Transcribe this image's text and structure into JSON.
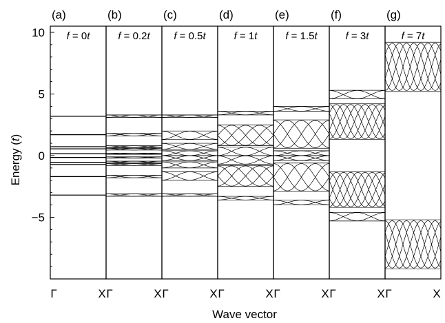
{
  "chart_data": {
    "type": "line",
    "title": "",
    "xlabel": "Wave vector",
    "ylabel_prefix": "Energy (",
    "ylabel_var": "t",
    "ylabel_suffix": ")",
    "ylim": [
      -10,
      10.5
    ],
    "yticks": [
      {
        "value": 10,
        "label": "10"
      },
      {
        "value": 5,
        "label": "5"
      },
      {
        "value": 0,
        "label": "0"
      },
      {
        "value": -5,
        "label": "−5"
      }
    ],
    "xtick_left": "Γ",
    "xtick_right": "X",
    "panels": [
      {
        "label": "(a)",
        "field_var": "f",
        "field_eq": " = ",
        "field_value": "0",
        "field_unit": "t",
        "f": 0,
        "bands": [
          [
            0.15,
            0.15
          ],
          [
            0.55,
            0.55
          ],
          [
            0.72,
            0.72
          ],
          [
            1.7,
            1.7
          ],
          [
            3.2,
            3.2
          ]
        ]
      },
      {
        "label": "(b)",
        "field_var": "f",
        "field_eq": " = ",
        "field_value": "0.2",
        "field_unit": "t",
        "f": 0.2,
        "bands": [
          [
            0.1,
            0.2
          ],
          [
            0.45,
            0.6
          ],
          [
            0.65,
            0.8
          ],
          [
            1.6,
            1.8
          ],
          [
            3.1,
            3.3
          ]
        ]
      },
      {
        "label": "(c)",
        "field_var": "f",
        "field_eq": " = ",
        "field_value": "0.5",
        "field_unit": "t",
        "f": 0.5,
        "bands": [
          [
            0.0,
            0.4
          ],
          [
            0.5,
            1.0
          ],
          [
            1.3,
            2.0
          ],
          [
            3.1,
            3.3
          ]
        ]
      },
      {
        "label": "(d)",
        "field_var": "f",
        "field_eq": " = ",
        "field_value": "1",
        "field_unit": "t",
        "f": 1,
        "bands": [
          [
            0.0,
            0.7
          ],
          [
            0.8,
            2.5
          ],
          [
            3.3,
            3.6
          ]
        ]
      },
      {
        "label": "(e)",
        "field_var": "f",
        "field_eq": " = ",
        "field_value": "1.5",
        "field_unit": "t",
        "f": 1.5,
        "bands": [
          [
            0.0,
            0.4
          ],
          [
            0.6,
            2.9
          ],
          [
            3.6,
            4.0
          ]
        ]
      },
      {
        "label": "(f)",
        "field_var": "f",
        "field_eq": " = ",
        "field_value": "3",
        "field_unit": "t",
        "f": 3,
        "bands": [
          [
            1.3,
            4.2
          ],
          [
            4.6,
            5.3
          ]
        ]
      },
      {
        "label": "(g)",
        "field_var": "f",
        "field_eq": " = ",
        "field_value": "7",
        "field_unit": "t",
        "f": 7,
        "bands": [
          [
            5.2,
            9.2
          ]
        ]
      }
    ]
  }
}
